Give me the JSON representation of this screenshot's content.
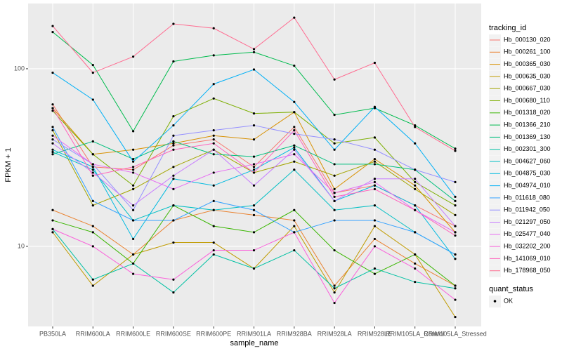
{
  "chart_data": {
    "type": "line",
    "x_label": "sample_name",
    "y_label": "FPKM + 1",
    "log_y": true,
    "grid": true,
    "categories": [
      "PB350LA",
      "RRIM600LA",
      "RRIM600LE",
      "RRIM600SE",
      "RRIM600PE",
      "RRIM901LA",
      "RRIM928BA",
      "RRIM928LA",
      "RRIM928LE",
      "RRIM105LA_Control",
      "RRIM105LA_Stressed"
    ],
    "ylim": [
      3.54,
      233
    ],
    "yticks": [
      10,
      100
    ],
    "legend_title": "tracking_id",
    "legend_position": "right",
    "point_legend": {
      "title": "quant_status",
      "labels": [
        "OK"
      ],
      "color": "#000000"
    },
    "series": [
      {
        "name": "Hb_000130_020",
        "color": "#F8766D",
        "values": [
          63,
          28,
          27,
          37,
          40,
          28,
          47,
          20,
          22,
          17,
          13
        ]
      },
      {
        "name": "Hb_000261_100",
        "color": "#EA8331",
        "values": [
          16,
          13,
          9,
          14,
          16,
          15,
          14,
          6,
          11,
          8,
          6
        ]
      },
      {
        "name": "Hb_000365_030",
        "color": "#D89000",
        "values": [
          60,
          33,
          35,
          38,
          42,
          40,
          57,
          21,
          31,
          22,
          12
        ]
      },
      {
        "name": "Hb_000635_030",
        "color": "#C09B00",
        "values": [
          12,
          6,
          9,
          10.5,
          10.5,
          7.5,
          13,
          5.5,
          13,
          9,
          4
        ]
      },
      {
        "name": "Hb_000667_030",
        "color": "#A3A500",
        "values": [
          45,
          17,
          21,
          28,
          35,
          26,
          30,
          25,
          30,
          21,
          15
        ]
      },
      {
        "name": "Hb_000680_110",
        "color": "#7CAE00",
        "values": [
          58,
          33,
          22,
          54,
          68,
          56,
          57,
          38,
          41,
          23,
          17
        ]
      },
      {
        "name": "Hb_001318_020",
        "color": "#39B600",
        "values": [
          14,
          12,
          8,
          17,
          13,
          12,
          16,
          9.5,
          7,
          9,
          6
        ]
      },
      {
        "name": "Hb_001366_210",
        "color": "#00BB4E",
        "values": [
          161,
          105,
          44.5,
          110,
          119,
          124,
          104,
          55,
          60,
          48,
          35.5
        ]
      },
      {
        "name": "Hb_001369_130",
        "color": "#00BF7D",
        "values": [
          33,
          39,
          31,
          39,
          33,
          32,
          37,
          29,
          29,
          27,
          18
        ]
      },
      {
        "name": "Hb_002301_300",
        "color": "#00C1A3",
        "values": [
          12.5,
          6.5,
          8,
          5.5,
          9,
          7.5,
          9.5,
          5.8,
          7.5,
          6.3,
          5.8
        ]
      },
      {
        "name": "Hb_004627_060",
        "color": "#00BFC4",
        "values": [
          34,
          27,
          14,
          17,
          16,
          17,
          27,
          16,
          17,
          12,
          9
        ]
      },
      {
        "name": "Hb_004875_030",
        "color": "#00BAE0",
        "values": [
          35,
          28,
          11,
          24,
          22,
          27,
          36,
          18,
          22,
          17,
          8.5
        ]
      },
      {
        "name": "Hb_004974_010",
        "color": "#00B0F6",
        "values": [
          95,
          67,
          30,
          48,
          82,
          99,
          65,
          35,
          61,
          38,
          19
        ]
      },
      {
        "name": "Hb_011618_080",
        "color": "#35A2FF",
        "values": [
          47,
          18,
          14,
          14,
          18,
          16,
          12,
          14,
          14,
          12,
          9
        ]
      },
      {
        "name": "Hb_011942_050",
        "color": "#9590FF",
        "values": [
          40,
          29,
          16,
          42,
          45,
          48,
          43,
          40,
          35,
          27,
          23
        ]
      },
      {
        "name": "Hb_021297_050",
        "color": "#C77CFF",
        "values": [
          38,
          26,
          17,
          25,
          35,
          22,
          35,
          18,
          24,
          24,
          13
        ]
      },
      {
        "name": "Hb_025477_040",
        "color": "#E76BF3",
        "values": [
          42,
          29,
          26,
          21,
          26,
          29,
          33,
          20,
          23,
          16,
          12
        ]
      },
      {
        "name": "Hb_032202_200",
        "color": "#FA62DB",
        "values": [
          12.5,
          10,
          7,
          6.5,
          9.5,
          9.5,
          12,
          4.8,
          10,
          7.5,
          5
        ]
      },
      {
        "name": "Hb_141069_010",
        "color": "#FF62BC",
        "values": [
          60,
          25,
          28,
          35,
          38,
          26,
          45,
          19,
          21,
          16,
          11.5
        ]
      },
      {
        "name": "Hb_178968_050",
        "color": "#FF6C91",
        "values": [
          174,
          95,
          117,
          179,
          169,
          129,
          194,
          87,
          108,
          47,
          34.5
        ]
      }
    ]
  }
}
